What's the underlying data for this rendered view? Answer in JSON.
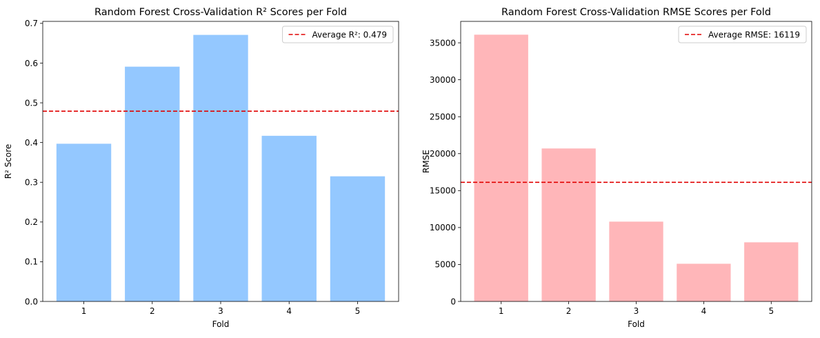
{
  "chart_data": [
    {
      "type": "bar",
      "title": "Random Forest Cross-Validation R² Scores per Fold",
      "xlabel": "Fold",
      "ylabel": "R² Score",
      "categories": [
        "1",
        "2",
        "3",
        "4",
        "5"
      ],
      "values": [
        0.397,
        0.591,
        0.671,
        0.417,
        0.315
      ],
      "ylim": [
        0,
        0.705
      ],
      "yticks": [
        0.0,
        0.1,
        0.2,
        0.3,
        0.4,
        0.5,
        0.6,
        0.7
      ],
      "ytick_labels": [
        "0.0",
        "0.1",
        "0.2",
        "0.3",
        "0.4",
        "0.5",
        "0.6",
        "0.7"
      ],
      "bar_color": "#94c8ff",
      "reference_line": {
        "value": 0.479,
        "label": "Average R²: 0.479",
        "color": "#e00000",
        "style": "dashed"
      },
      "legend": {
        "position": "top-right",
        "entries": [
          "Average R²: 0.479"
        ]
      },
      "grid": false
    },
    {
      "type": "bar",
      "title": "Random Forest Cross-Validation RMSE Scores per Fold",
      "xlabel": "Fold",
      "ylabel": "RMSE",
      "categories": [
        "1",
        "2",
        "3",
        "4",
        "5"
      ],
      "values": [
        36100,
        20700,
        10800,
        5100,
        8000
      ],
      "ylim": [
        0,
        37900
      ],
      "yticks": [
        0,
        5000,
        10000,
        15000,
        20000,
        25000,
        30000,
        35000
      ],
      "ytick_labels": [
        "0",
        "5000",
        "10000",
        "15000",
        "20000",
        "25000",
        "30000",
        "35000"
      ],
      "bar_color": "#ffb6b9",
      "reference_line": {
        "value": 16119,
        "label": "Average RMSE: 16119",
        "color": "#e00000",
        "style": "dashed"
      },
      "legend": {
        "position": "top-right",
        "entries": [
          "Average RMSE: 16119"
        ]
      },
      "grid": false
    }
  ]
}
